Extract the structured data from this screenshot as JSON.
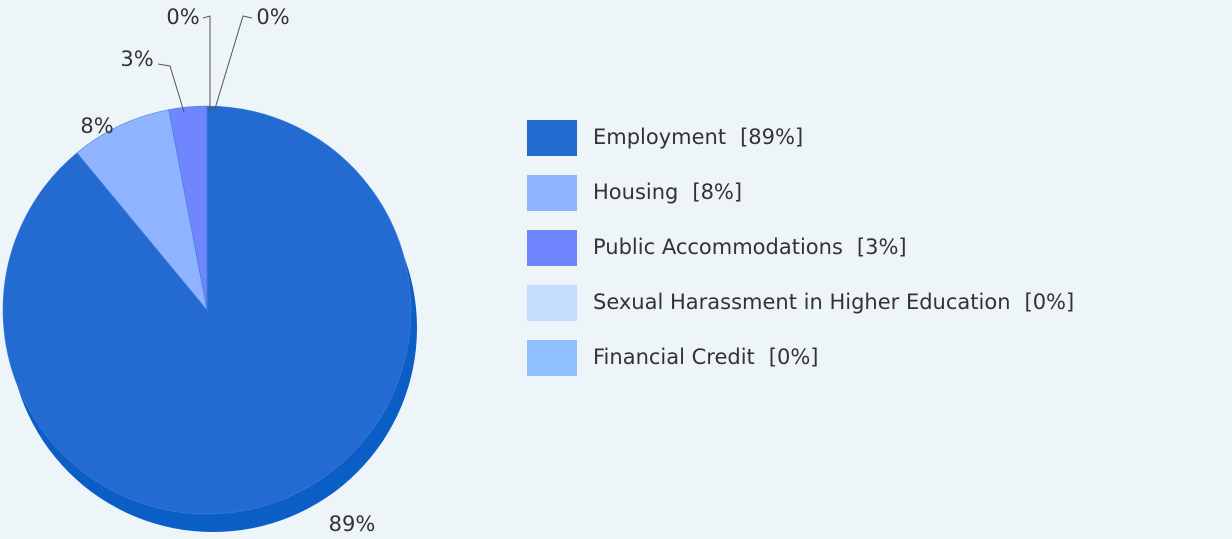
{
  "chart_data": {
    "type": "pie",
    "categories": [
      "Employment",
      "Housing",
      "Public Accommodations",
      "Sexual Harassment in Higher Education",
      "Financial Credit"
    ],
    "values": [
      89,
      8,
      3,
      0,
      0
    ],
    "value_labels": [
      "89%",
      "8%",
      "3%",
      "0%",
      "0%"
    ],
    "legend_value_labels": [
      "[89%]",
      "[8%]",
      "[3%]",
      "[0%]",
      "[0%]"
    ],
    "colors": [
      "#236bd0",
      "#8fb3ff",
      "#6f86ff",
      "#c5dcff",
      "#8fbfff"
    ],
    "legend": "right"
  }
}
